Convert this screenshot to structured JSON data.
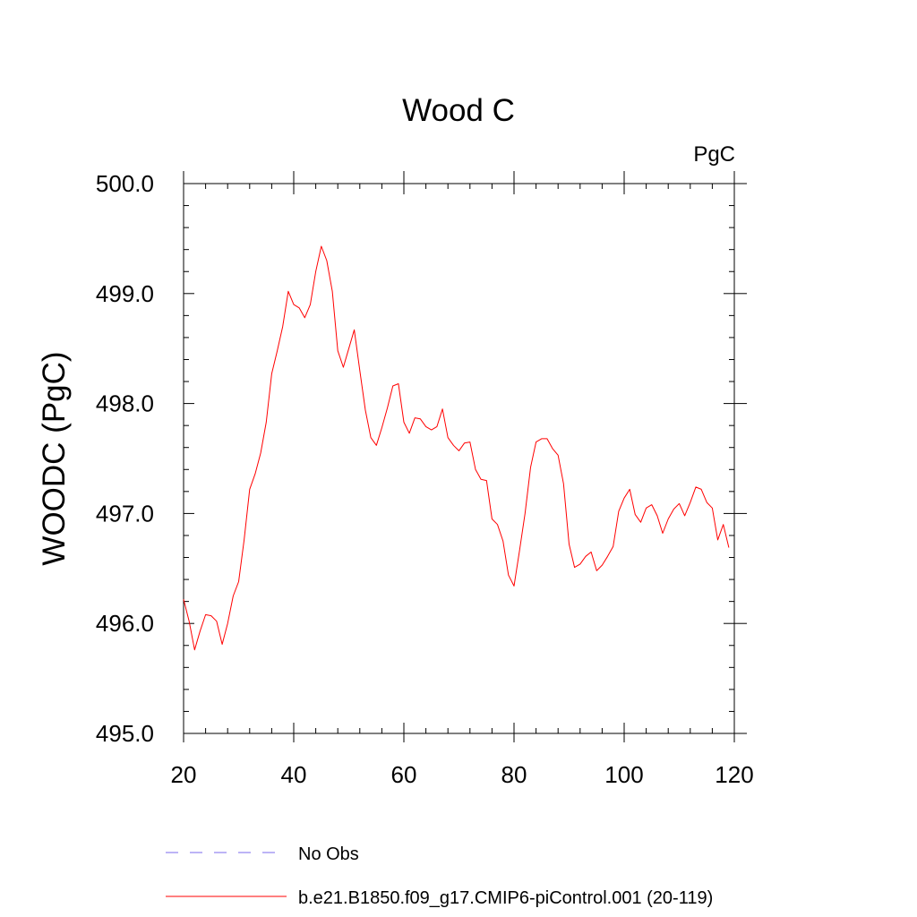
{
  "chart_data": {
    "type": "line",
    "title": "Wood C",
    "units_label": "PgC",
    "ylabel": "WOODC  (PgC)",
    "xlabel": "",
    "xlim": [
      20,
      120
    ],
    "ylim": [
      495.0,
      500.0
    ],
    "x_ticks": [
      20,
      40,
      60,
      80,
      100,
      120
    ],
    "x_tick_labels": [
      "20",
      "40",
      "60",
      "80",
      "100",
      "120"
    ],
    "y_ticks": [
      495.0,
      496.0,
      497.0,
      498.0,
      499.0,
      500.0
    ],
    "y_tick_labels": [
      "495.0",
      "496.0",
      "497.0",
      "498.0",
      "499.0",
      "500.0"
    ],
    "grid": false,
    "legend_position": "bottom",
    "colors": {
      "series": "#ff0000",
      "obs": "#7b68ee"
    },
    "legend": [
      {
        "label": "No Obs",
        "style": "dashed",
        "color": "#7b68ee"
      },
      {
        "label": "b.e21.B1850.f09_g17.CMIP6-piControl.001 (20-119)",
        "style": "solid",
        "color": "#ff0000"
      }
    ],
    "series": [
      {
        "name": "b.e21.B1850.f09_g17.CMIP6-piControl.001 (20-119)",
        "x": [
          20,
          21,
          22,
          23,
          24,
          25,
          26,
          27,
          28,
          29,
          30,
          31,
          32,
          33,
          34,
          35,
          36,
          37,
          38,
          39,
          40,
          41,
          42,
          43,
          44,
          45,
          46,
          47,
          48,
          49,
          50,
          51,
          52,
          53,
          54,
          55,
          56,
          57,
          58,
          59,
          60,
          61,
          62,
          63,
          64,
          65,
          66,
          67,
          68,
          69,
          70,
          71,
          72,
          73,
          74,
          75,
          76,
          77,
          78,
          79,
          80,
          81,
          82,
          83,
          84,
          85,
          86,
          87,
          88,
          89,
          90,
          91,
          92,
          93,
          94,
          95,
          96,
          97,
          98,
          99,
          100,
          101,
          102,
          103,
          104,
          105,
          106,
          107,
          108,
          109,
          110,
          111,
          112,
          113,
          114,
          115,
          116,
          117,
          118,
          119
        ],
        "y": [
          496.22,
          496.02,
          495.76,
          495.93,
          496.08,
          496.07,
          496.02,
          495.81,
          496.0,
          496.25,
          496.38,
          496.76,
          497.22,
          497.36,
          497.55,
          497.83,
          498.27,
          498.48,
          498.7,
          499.02,
          498.9,
          498.87,
          498.78,
          498.9,
          499.2,
          499.43,
          499.3,
          499.02,
          498.48,
          498.33,
          498.5,
          498.67,
          498.3,
          497.94,
          497.69,
          497.62,
          497.78,
          497.96,
          498.16,
          498.18,
          497.83,
          497.73,
          497.87,
          497.86,
          497.79,
          497.76,
          497.79,
          497.95,
          497.69,
          497.62,
          497.57,
          497.64,
          497.65,
          497.4,
          497.31,
          497.3,
          496.95,
          496.9,
          496.75,
          496.44,
          496.34,
          496.66,
          497.0,
          497.42,
          497.65,
          497.68,
          497.68,
          497.59,
          497.53,
          497.27,
          496.72,
          496.51,
          496.54,
          496.61,
          496.65,
          496.48,
          496.53,
          496.61,
          496.7,
          497.02,
          497.14,
          497.22,
          496.99,
          496.92,
          497.05,
          497.08,
          496.98,
          496.82,
          496.95,
          497.04,
          497.09,
          496.98,
          497.1,
          497.24,
          497.22,
          497.1,
          497.05,
          496.76,
          496.9,
          496.69
        ]
      }
    ]
  }
}
